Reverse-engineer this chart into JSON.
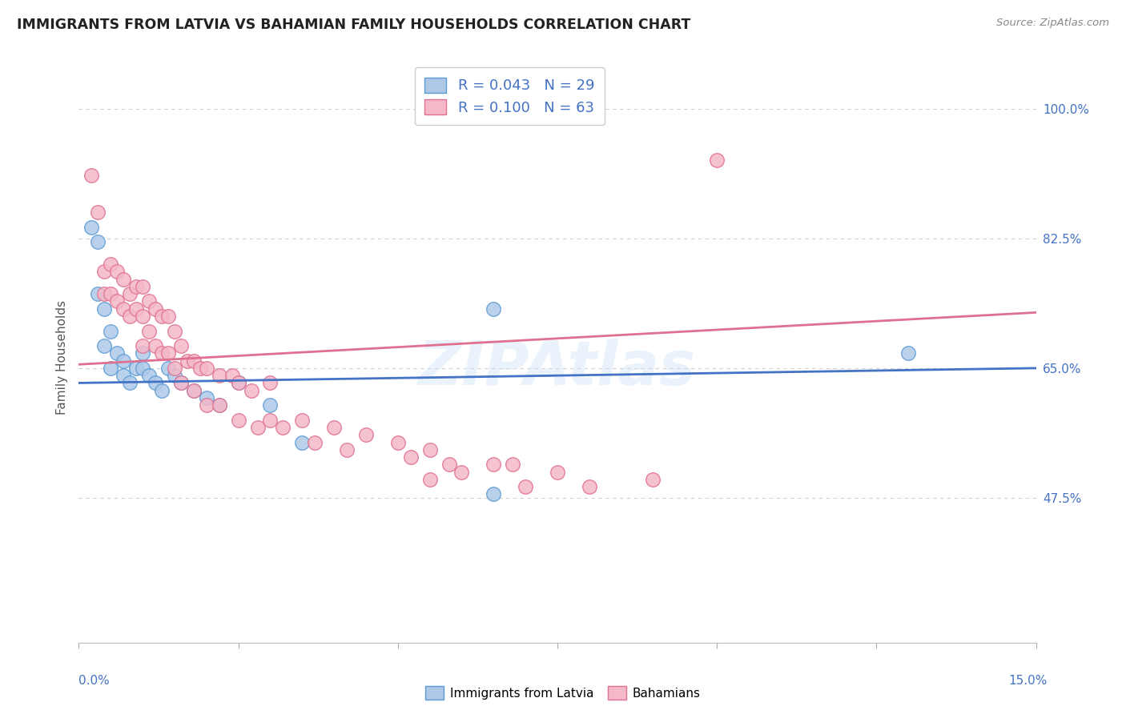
{
  "title": "IMMIGRANTS FROM LATVIA VS BAHAMIAN FAMILY HOUSEHOLDS CORRELATION CHART",
  "source": "Source: ZipAtlas.com",
  "ylabel": "Family Households",
  "xlim": [
    0.0,
    0.15
  ],
  "ylim": [
    0.28,
    1.05
  ],
  "ytick_vals": [
    0.475,
    0.65,
    0.825,
    1.0
  ],
  "ytick_labels": [
    "47.5%",
    "65.0%",
    "82.5%",
    "100.0%"
  ],
  "legend_blue_R": "0.043",
  "legend_blue_N": "29",
  "legend_pink_R": "0.100",
  "legend_pink_N": "63",
  "blue_fill": "#aec9e8",
  "blue_edge": "#5b9bd5",
  "pink_fill": "#f4b8c8",
  "pink_edge": "#e07090",
  "blue_line": "#4472c4",
  "pink_line": "#e07090",
  "grid_color": "#d0d0d0",
  "background_color": "#ffffff",
  "watermark": "ZIPAtlas",
  "blue_x": [
    0.002,
    0.003,
    0.003,
    0.004,
    0.004,
    0.005,
    0.005,
    0.006,
    0.007,
    0.007,
    0.008,
    0.009,
    0.01,
    0.01,
    0.011,
    0.012,
    0.013,
    0.014,
    0.015,
    0.016,
    0.018,
    0.02,
    0.022,
    0.025,
    0.03,
    0.035,
    0.065,
    0.065,
    0.13
  ],
  "blue_y": [
    0.84,
    0.82,
    0.75,
    0.73,
    0.68,
    0.7,
    0.65,
    0.67,
    0.66,
    0.64,
    0.63,
    0.65,
    0.67,
    0.65,
    0.64,
    0.63,
    0.62,
    0.65,
    0.64,
    0.63,
    0.62,
    0.61,
    0.6,
    0.63,
    0.6,
    0.55,
    0.73,
    0.48,
    0.67
  ],
  "pink_x": [
    0.002,
    0.003,
    0.004,
    0.004,
    0.005,
    0.005,
    0.006,
    0.006,
    0.007,
    0.007,
    0.008,
    0.008,
    0.009,
    0.009,
    0.01,
    0.01,
    0.01,
    0.011,
    0.011,
    0.012,
    0.012,
    0.013,
    0.013,
    0.014,
    0.014,
    0.015,
    0.015,
    0.016,
    0.016,
    0.017,
    0.018,
    0.018,
    0.019,
    0.02,
    0.02,
    0.022,
    0.022,
    0.024,
    0.025,
    0.025,
    0.027,
    0.028,
    0.03,
    0.03,
    0.032,
    0.035,
    0.037,
    0.04,
    0.042,
    0.045,
    0.05,
    0.052,
    0.055,
    0.055,
    0.058,
    0.06,
    0.065,
    0.068,
    0.07,
    0.075,
    0.08,
    0.09,
    0.1
  ],
  "pink_y": [
    0.91,
    0.86,
    0.78,
    0.75,
    0.79,
    0.75,
    0.78,
    0.74,
    0.77,
    0.73,
    0.75,
    0.72,
    0.76,
    0.73,
    0.76,
    0.72,
    0.68,
    0.74,
    0.7,
    0.73,
    0.68,
    0.72,
    0.67,
    0.72,
    0.67,
    0.7,
    0.65,
    0.68,
    0.63,
    0.66,
    0.66,
    0.62,
    0.65,
    0.65,
    0.6,
    0.64,
    0.6,
    0.64,
    0.63,
    0.58,
    0.62,
    0.57,
    0.63,
    0.58,
    0.57,
    0.58,
    0.55,
    0.57,
    0.54,
    0.56,
    0.55,
    0.53,
    0.54,
    0.5,
    0.52,
    0.51,
    0.52,
    0.52,
    0.49,
    0.51,
    0.49,
    0.5,
    0.93
  ]
}
